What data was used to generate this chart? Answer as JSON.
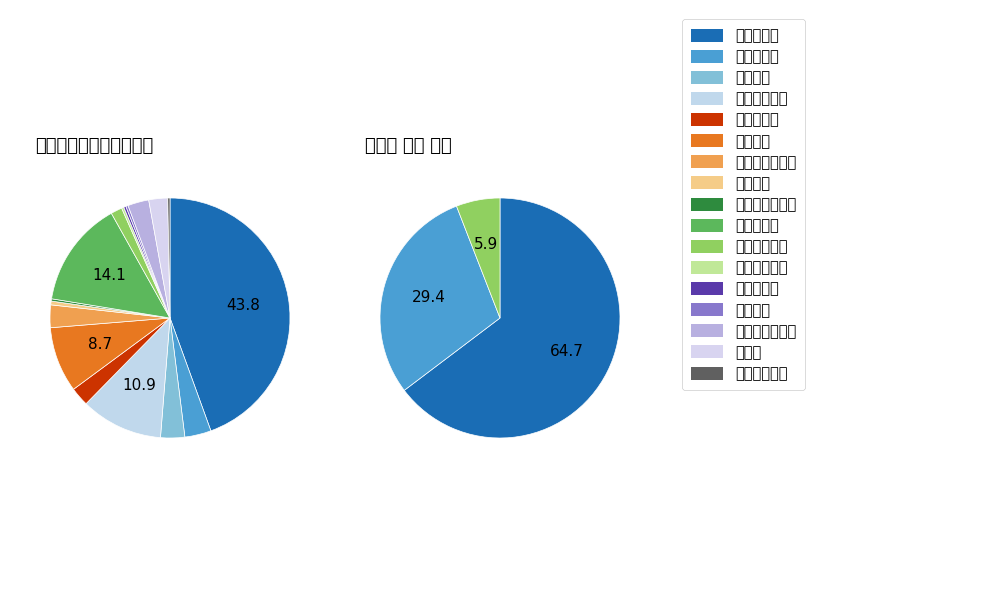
{
  "left_title": "セ・リーグ全プレイヤー",
  "right_title": "大瀨良 大地 選手",
  "pitch_types": [
    "ストレート",
    "ツーシーム",
    "シュート",
    "カットボール",
    "スプリット",
    "フォーク",
    "チェンジアップ",
    "シンカー",
    "高速スライダー",
    "スライダー",
    "縦スライダー",
    "パワーカーブ",
    "スクリュー",
    "ナックル",
    "ナックルカーブ",
    "カーブ",
    "スローカーブ"
  ],
  "colors": [
    "#1a6db5",
    "#4a9fd4",
    "#82c0d8",
    "#c0d8ec",
    "#cc3300",
    "#e87820",
    "#f0a050",
    "#f5cc88",
    "#2e8b3e",
    "#5cb85c",
    "#90d060",
    "#c0e898",
    "#5a3aaa",
    "#8878cc",
    "#b8b0e0",
    "#d8d4f0",
    "#606060"
  ],
  "left_values": [
    43.8,
    3.5,
    3.2,
    10.9,
    2.5,
    8.7,
    3.0,
    0.5,
    0.3,
    14.1,
    1.5,
    0.3,
    0.3,
    0.3,
    2.8,
    2.5,
    0.3
  ],
  "left_show_labels": [
    true,
    false,
    false,
    true,
    false,
    true,
    false,
    false,
    false,
    true,
    false,
    false,
    false,
    false,
    false,
    false,
    false
  ],
  "right_values": [
    64.7,
    29.4,
    0,
    0,
    0,
    0,
    0,
    0,
    0,
    0,
    5.9,
    0,
    0,
    0,
    0,
    0,
    0
  ],
  "right_show_labels": [
    true,
    true,
    false,
    false,
    false,
    false,
    false,
    false,
    false,
    false,
    true,
    false,
    false,
    false,
    false,
    false,
    false
  ],
  "background_color": "#ffffff",
  "text_color": "#000000",
  "title_fontsize": 13,
  "label_fontsize": 11,
  "legend_fontsize": 10.5
}
